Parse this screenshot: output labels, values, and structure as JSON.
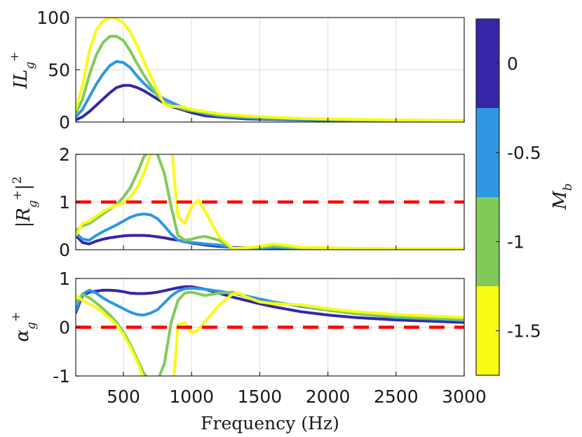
{
  "chart_data": {
    "type": "line",
    "x_axis": {
      "label": "Frequency (Hz)",
      "range": [
        150,
        3000
      ],
      "ticks": [
        500,
        1000,
        1500,
        2000,
        2500,
        3000
      ],
      "tick_labels": [
        "500",
        "1000",
        "1500",
        "2000",
        "2500",
        "3000"
      ],
      "grid": true
    },
    "colorbar": {
      "label": "M_b",
      "range": [
        0.25,
        -1.75
      ],
      "tick_labels": [
        "0",
        "-0.5",
        "-1",
        "-1.5"
      ],
      "levels": [
        {
          "value": 0,
          "color": "#3526a8"
        },
        {
          "value": -0.5,
          "color": "#2d97e4"
        },
        {
          "value": -1,
          "color": "#80cb58"
        },
        {
          "value": -1.5,
          "color": "#f9fb14"
        }
      ]
    },
    "panels": [
      {
        "ylabel": "IL_g^+",
        "ylim": [
          0,
          100
        ],
        "yticks": [
          0,
          50,
          100
        ],
        "ytick_labels": [
          "0",
          "50",
          "100"
        ],
        "grid": true,
        "reference_line": null,
        "series": [
          {
            "value": 0,
            "color": "#3526a8",
            "x": [
              150,
              200,
              250,
              300,
              350,
              400,
              450,
              500,
              550,
              600,
              650,
              700,
              750,
              800,
              850,
              900,
              950,
              1000,
              1100,
              1200,
              1300,
              1400,
              1600,
              1800,
              2000,
              2500,
              3000
            ],
            "y": [
              2,
              5,
              10,
              16,
              22,
              28,
              33,
              35,
              35,
              33,
              30,
              26,
              22,
              18,
              15,
              13,
              11,
              9,
              6,
              5,
              4,
              3,
              2.5,
              2,
              1.5,
              1,
              0.5
            ]
          },
          {
            "value": -0.5,
            "color": "#2d97e4",
            "x": [
              150,
              200,
              250,
              300,
              350,
              400,
              450,
              500,
              550,
              600,
              650,
              700,
              750,
              800,
              850,
              900,
              950,
              1000,
              1100,
              1200,
              1300,
              1400,
              1600,
              1800,
              2000,
              2500,
              3000
            ],
            "y": [
              5,
              12,
              24,
              36,
              46,
              54,
              58,
              57,
              52,
              44,
              37,
              31,
              26,
              22,
              19,
              16,
              13,
              11,
              8,
              6,
              5,
              4,
              3,
              2.5,
              2,
              1.2,
              0.8
            ]
          },
          {
            "value": -1,
            "color": "#80cb58",
            "x": [
              150,
              200,
              250,
              300,
              350,
              400,
              450,
              500,
              550,
              600,
              650,
              700,
              750,
              800,
              850,
              900,
              950,
              1000,
              1100,
              1200,
              1300,
              1400,
              1600,
              1800,
              2000,
              2500,
              3000
            ],
            "y": [
              8,
              22,
              45,
              64,
              76,
              82,
              82,
              78,
              68,
              56,
              45,
              35,
              25,
              19,
              16,
              14,
              12,
              11,
              9,
              7,
              6,
              5,
              4,
              3,
              2.5,
              1.5,
              1
            ]
          },
          {
            "value": -1.5,
            "color": "#f9fb14",
            "x": [
              150,
              200,
              250,
              300,
              350,
              400,
              450,
              500,
              550,
              600,
              650,
              700,
              750,
              800,
              850,
              900,
              950,
              1000,
              1100,
              1200,
              1300,
              1400,
              1600,
              1800,
              2000,
              2500,
              3000
            ],
            "y": [
              12,
              35,
              68,
              88,
              97,
              100,
              99,
              95,
              86,
              73,
              58,
              44,
              30,
              17,
              15,
              15,
              14,
              12,
              10,
              8,
              7,
              6,
              4.5,
              3.5,
              3,
              2,
              1.5
            ]
          }
        ]
      },
      {
        "ylabel": "|R_g^+|^2",
        "ylim": [
          0,
          2
        ],
        "yticks": [
          0,
          1,
          2
        ],
        "ytick_labels": [
          "0",
          "1",
          "2"
        ],
        "grid": true,
        "reference_line": 1,
        "series": [
          {
            "value": 0,
            "color": "#3526a8",
            "x": [
              150,
              200,
              250,
              300,
              350,
              400,
              450,
              500,
              550,
              600,
              650,
              700,
              750,
              800,
              850,
              900,
              950,
              1000,
              1050,
              1100,
              1200,
              1300,
              1400,
              1500,
              1600,
              1700,
              1800,
              2000,
              2200,
              2500,
              3000
            ],
            "y": [
              0.3,
              0.15,
              0.12,
              0.18,
              0.22,
              0.25,
              0.27,
              0.29,
              0.3,
              0.3,
              0.3,
              0.29,
              0.27,
              0.25,
              0.22,
              0.2,
              0.17,
              0.14,
              0.12,
              0.1,
              0.07,
              0.05,
              0.04,
              0.03,
              0.02,
              0.02,
              0.01,
              0.01,
              0.01,
              0.01,
              0.01
            ]
          },
          {
            "value": -0.5,
            "color": "#2d97e4",
            "x": [
              150,
              200,
              250,
              300,
              350,
              400,
              450,
              500,
              550,
              600,
              650,
              700,
              750,
              800,
              850,
              900,
              950,
              1000,
              1050,
              1100,
              1200,
              1300,
              1400,
              1500,
              1600,
              1700,
              1800,
              2000,
              2200,
              2500,
              3000
            ],
            "y": [
              0.35,
              0.22,
              0.2,
              0.3,
              0.38,
              0.45,
              0.52,
              0.6,
              0.68,
              0.73,
              0.75,
              0.73,
              0.65,
              0.5,
              0.33,
              0.2,
              0.16,
              0.15,
              0.14,
              0.12,
              0.1,
              0.04,
              0.02,
              0.03,
              0.05,
              0.04,
              0.02,
              0.02,
              0.02,
              0.01,
              0.01
            ]
          },
          {
            "value": -1,
            "color": "#80cb58",
            "x": [
              150,
              200,
              250,
              300,
              350,
              400,
              450,
              500,
              550,
              600,
              650,
              700,
              750,
              800,
              850,
              900,
              950,
              1000,
              1050,
              1100,
              1200,
              1300,
              1400,
              1500,
              1600,
              1700,
              1800,
              2000,
              2200,
              2500,
              3000
            ],
            "y": [
              0.4,
              0.5,
              0.55,
              0.65,
              0.75,
              0.85,
              0.95,
              1.1,
              1.3,
              1.6,
              1.95,
              2.1,
              2.0,
              1.6,
              0.9,
              0.3,
              0.2,
              0.22,
              0.26,
              0.28,
              0.2,
              0.03,
              0.02,
              0.05,
              0.08,
              0.06,
              0.03,
              0.03,
              0.02,
              0.01,
              0.01
            ]
          },
          {
            "value": -1.5,
            "color": "#f9fb14",
            "x": [
              150,
              200,
              250,
              300,
              350,
              400,
              450,
              500,
              550,
              600,
              650,
              700,
              750,
              800,
              830,
              860,
              870,
              900,
              950,
              1000,
              1050,
              1100,
              1200,
              1300,
              1400,
              1500,
              1600,
              1700,
              1800,
              2000,
              2200,
              2500,
              3000
            ],
            "y": [
              0.3,
              0.55,
              0.6,
              0.7,
              0.8,
              0.88,
              0.93,
              0.98,
              1.1,
              1.3,
              1.6,
              2.0,
              2.1,
              2.1,
              2.1,
              2.0,
              1.6,
              0.7,
              0.55,
              0.9,
              1.04,
              0.8,
              0.28,
              0.03,
              0.04,
              0.07,
              0.12,
              0.09,
              0.05,
              0.04,
              0.03,
              0.02,
              0.02
            ]
          }
        ]
      },
      {
        "ylabel": "α_g^+",
        "ylim": [
          -1,
          1
        ],
        "yticks": [
          -1,
          0,
          1
        ],
        "ytick_labels": [
          "-1",
          "0",
          "1"
        ],
        "grid": true,
        "reference_line": 0,
        "series": [
          {
            "value": 0,
            "color": "#3526a8",
            "x": [
              150,
              200,
              250,
              300,
              350,
              400,
              450,
              500,
              550,
              600,
              650,
              700,
              750,
              800,
              850,
              900,
              950,
              1000,
              1100,
              1200,
              1300,
              1400,
              1500,
              1600,
              1800,
              2000,
              2200,
              2500,
              3000
            ],
            "y": [
              0.3,
              0.65,
              0.72,
              0.74,
              0.76,
              0.76,
              0.75,
              0.73,
              0.7,
              0.69,
              0.69,
              0.7,
              0.72,
              0.75,
              0.78,
              0.81,
              0.83,
              0.83,
              0.78,
              0.7,
              0.62,
              0.55,
              0.48,
              0.42,
              0.32,
              0.25,
              0.2,
              0.15,
              0.1
            ]
          },
          {
            "value": -0.5,
            "color": "#2d97e4",
            "x": [
              150,
              200,
              250,
              300,
              350,
              400,
              450,
              500,
              550,
              600,
              650,
              700,
              750,
              800,
              850,
              900,
              950,
              1000,
              1100,
              1200,
              1300,
              1400,
              1500,
              1600,
              1800,
              2000,
              2200,
              2500,
              3000
            ],
            "y": [
              0.35,
              0.68,
              0.76,
              0.7,
              0.6,
              0.52,
              0.45,
              0.38,
              0.31,
              0.26,
              0.25,
              0.29,
              0.36,
              0.5,
              0.64,
              0.74,
              0.79,
              0.8,
              0.78,
              0.74,
              0.7,
              0.64,
              0.58,
              0.52,
              0.43,
              0.35,
              0.28,
              0.2,
              0.14
            ]
          },
          {
            "value": -1,
            "color": "#80cb58",
            "x": [
              150,
              200,
              250,
              300,
              350,
              400,
              450,
              500,
              550,
              600,
              650,
              700,
              750,
              800,
              850,
              900,
              950,
              1000,
              1100,
              1200,
              1300,
              1400,
              1500,
              1600,
              1800,
              2000,
              2200,
              2500,
              3000
            ],
            "y": [
              0.5,
              0.68,
              0.6,
              0.5,
              0.38,
              0.25,
              0.1,
              -0.1,
              -0.35,
              -0.65,
              -0.95,
              -1.1,
              -1.1,
              -0.75,
              0.1,
              0.55,
              0.7,
              0.72,
              0.65,
              0.7,
              0.72,
              0.62,
              0.52,
              0.5,
              0.45,
              0.35,
              0.28,
              0.22,
              0.16
            ]
          },
          {
            "value": -1.5,
            "color": "#f9fb14",
            "x": [
              150,
              200,
              250,
              300,
              350,
              400,
              450,
              500,
              550,
              600,
              650,
              700,
              750,
              800,
              830,
              870,
              900,
              950,
              1000,
              1050,
              1100,
              1200,
              1300,
              1350,
              1400,
              1500,
              1600,
              1800,
              2000,
              2200,
              2500,
              3000
            ],
            "y": [
              0.65,
              0.55,
              0.48,
              0.4,
              0.3,
              0.18,
              0.05,
              -0.15,
              -0.4,
              -0.7,
              -1.05,
              -1.1,
              -1.1,
              -1.1,
              -1.1,
              -1.05,
              0.05,
              0.1,
              -0.12,
              -0.05,
              0.12,
              0.45,
              0.68,
              0.7,
              0.62,
              0.52,
              0.48,
              0.46,
              0.38,
              0.32,
              0.26,
              0.2
            ]
          }
        ]
      }
    ]
  }
}
